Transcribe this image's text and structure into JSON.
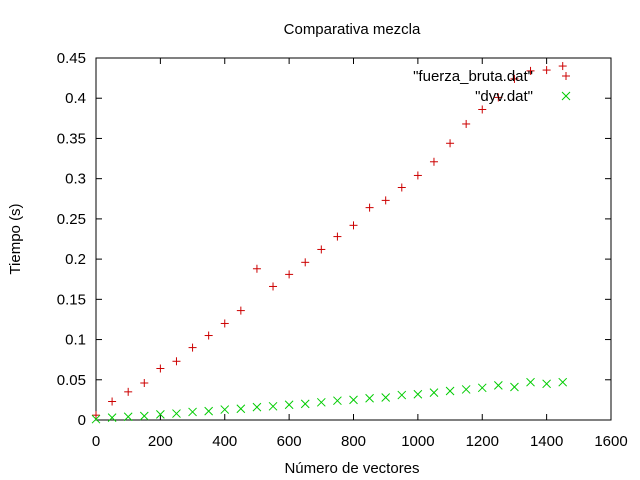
{
  "chart_data": {
    "type": "scatter",
    "title": "Comparativa mezcla",
    "xlabel": "Número de vectores",
    "ylabel": "Tiempo (s)",
    "xlim": [
      0,
      1600
    ],
    "ylim": [
      0,
      0.45
    ],
    "x_ticks": [
      "0",
      "200",
      "400",
      "600",
      "800",
      "1000",
      "1200",
      "1400",
      "1600"
    ],
    "y_ticks": [
      "0",
      "0.05",
      "0.1",
      "0.15",
      "0.2",
      "0.25",
      "0.3",
      "0.35",
      "0.4",
      "0.45"
    ],
    "grid": false,
    "legend_position": "top-right",
    "series": [
      {
        "name": "\"fuerza_bruta.dat\"",
        "marker": "plus",
        "color": "#cc0000",
        "x": [
          0,
          50,
          100,
          150,
          200,
          250,
          300,
          350,
          400,
          450,
          500,
          550,
          600,
          650,
          700,
          750,
          800,
          850,
          900,
          950,
          1000,
          1050,
          1100,
          1150,
          1200,
          1250,
          1300,
          1350,
          1400,
          1450
        ],
        "y": [
          0.006,
          0.023,
          0.035,
          0.046,
          0.064,
          0.073,
          0.09,
          0.105,
          0.12,
          0.136,
          0.188,
          0.166,
          0.181,
          0.196,
          0.212,
          0.228,
          0.242,
          0.264,
          0.273,
          0.289,
          0.304,
          0.321,
          0.344,
          0.368,
          0.386,
          0.401,
          0.424,
          0.434,
          0.435,
          0.44
        ]
      },
      {
        "name": "\"dyv.dat\"",
        "marker": "cross",
        "color": "#00cc00",
        "x": [
          0,
          50,
          100,
          150,
          200,
          250,
          300,
          350,
          400,
          450,
          500,
          550,
          600,
          650,
          700,
          750,
          800,
          850,
          900,
          950,
          1000,
          1050,
          1100,
          1150,
          1200,
          1250,
          1300,
          1350,
          1400,
          1450
        ],
        "y": [
          0.001,
          0.003,
          0.004,
          0.005,
          0.007,
          0.008,
          0.01,
          0.011,
          0.013,
          0.014,
          0.016,
          0.017,
          0.019,
          0.02,
          0.022,
          0.024,
          0.025,
          0.027,
          0.028,
          0.031,
          0.032,
          0.034,
          0.036,
          0.038,
          0.04,
          0.043,
          0.041,
          0.047,
          0.045,
          0.047
        ]
      }
    ]
  }
}
